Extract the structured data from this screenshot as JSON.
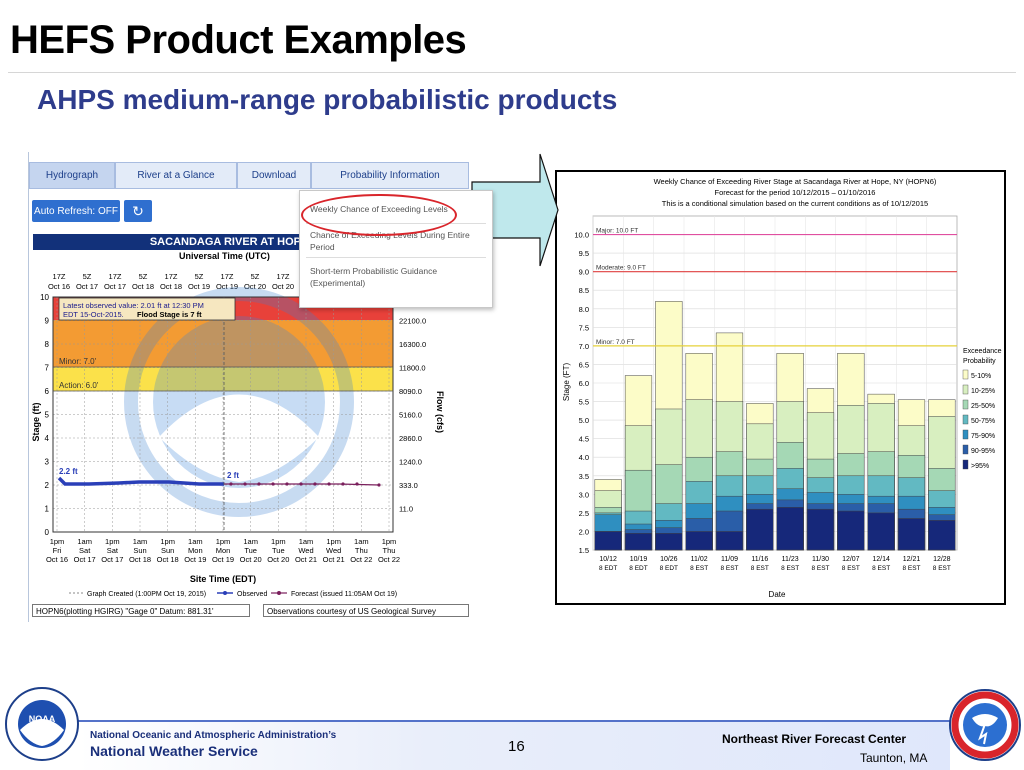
{
  "slide": {
    "title": "HEFS Product Examples",
    "subtitle": "AHPS medium-range probabilistic products",
    "page_number": "16"
  },
  "footer": {
    "agency_line1": "National Oceanic and Atmospheric Administration’s",
    "agency_line2": "National Weather Service",
    "center": "Northeast River Forecast Center",
    "location": "Taunton, MA"
  },
  "hydrograph_page": {
    "tabs": [
      "Hydrograph",
      "River at a Glance",
      "Download",
      "Probability Information"
    ],
    "auto_refresh_label": "Auto Refresh: OFF",
    "reload_icon": "refresh-icon",
    "menu_items": [
      "Weekly Chance of Exceeding Levels",
      "Chance of Exceeding Levels During Entire Period",
      "Short-term Probabilistic Guidance (Experimental)"
    ],
    "chart_title": "SACANDAGA RIVER AT HOP",
    "utc_label": "Universal Time (UTC)",
    "edt_label": "Site Time (EDT)",
    "latest_value": "Latest observed value: 2.01 ft at 12:30 PM",
    "latest_value2": "EDT 15-Oct-2015.",
    "flood_stage_text": "Flood Stage is 7 ft",
    "minor_label": "Minor: 7.0'",
    "action_label": "Action: 6.0'",
    "point_label_start": "2.2 ft",
    "point_label_end": "2 ft",
    "y_label": "Stage (ft)",
    "y2_label": "Flow (cfs)",
    "y_ticks": [
      "0",
      "1",
      "2",
      "3",
      "4",
      "5",
      "6",
      "7",
      "8",
      "9",
      "10"
    ],
    "flow_ticks": [
      "11.0",
      "333.0",
      "1240.0",
      "2860.0",
      "5160.0",
      "8090.0",
      "11800.0",
      "16300.0",
      "22100.0"
    ],
    "utc_ticks_top": [
      "17Z",
      "5Z",
      "17Z",
      "5Z",
      "17Z",
      "5Z",
      "17Z",
      "5Z",
      "17Z"
    ],
    "utc_ticks_bottom": [
      "Oct 16",
      "Oct 17",
      "Oct 17",
      "Oct 18",
      "Oct 18",
      "Oct 19",
      "Oct 19",
      "Oct 20",
      "Oct 20"
    ],
    "edt_ticks_time": [
      "1pm",
      "1am",
      "1pm",
      "1am",
      "1pm",
      "1am",
      "1pm",
      "1am",
      "1pm",
      "1am",
      "1pm",
      "1am",
      "1pm"
    ],
    "edt_ticks_day": [
      "Fri",
      "Sat",
      "Sat",
      "Sun",
      "Sun",
      "Mon",
      "Mon",
      "Tue",
      "Tue",
      "Wed",
      "Wed",
      "Thu",
      "Thu"
    ],
    "edt_ticks_date": [
      "Oct 16",
      "Oct 17",
      "Oct 17",
      "Oct 18",
      "Oct 18",
      "Oct 19",
      "Oct 19",
      "Oct 20",
      "Oct 20",
      "Oct 21",
      "Oct 21",
      "Oct 22",
      "Oct 22"
    ],
    "legend_created": "Graph Created (1:00PM Oct 19, 2015)",
    "legend_observed": "Observed",
    "legend_forecast": "Forecast (issued 11:05AM Oct 19)",
    "footer_left": "HOPN6(plotting HGIRG) \"Gage 0\" Datum: 881.31'",
    "footer_right": "Observations courtesy of US Geological Survey",
    "colors": {
      "major": "#e8413a",
      "moderate": "#f39b33",
      "minor": "#fbe14a",
      "observed": "#2a3fb8",
      "forecast": "#7a1f5c"
    }
  },
  "chart_data": {
    "type": "bar",
    "title": "Weekly Chance of Exceeding River Stage at Sacandaga River at Hope, NY (HOPN6)",
    "subtitle_1": "Forecast for the period 10/12/2015 – 01/10/2016",
    "subtitle_2": "This is a conditional simulation based on the current conditions as of 10/12/2015",
    "xlabel": "Date",
    "ylabel": "Stage (FT)",
    "ylim": [
      1.5,
      10.5
    ],
    "y_ticks": [
      1.5,
      2.0,
      2.5,
      3.0,
      3.5,
      4.0,
      4.5,
      5.0,
      5.5,
      6.0,
      6.5,
      7.0,
      7.5,
      8.0,
      8.5,
      9.0,
      9.5,
      10.0
    ],
    "categories": [
      "10/12",
      "10/19",
      "10/26",
      "11/02",
      "11/09",
      "11/16",
      "11/23",
      "11/30",
      "12/07",
      "12/14",
      "12/21",
      "12/28"
    ],
    "categories_sub": [
      "8 EDT",
      "8 EDT",
      "8 EDT",
      "8 EST",
      "8 EST",
      "8 EST",
      "8 EST",
      "8 EST",
      "8 EST",
      "8 EST",
      "8 EST",
      "8 EST"
    ],
    "thresholds": [
      {
        "label": "Major: 10.0 FT",
        "value": 10.0,
        "color": "#e04fa0"
      },
      {
        "label": "Moderate: 9.0 FT",
        "value": 9.0,
        "color": "#e04040"
      },
      {
        "label": "Minor: 7.0 FT",
        "value": 7.0,
        "color": "#e6d23a"
      }
    ],
    "legend_title": "Exceedance Probability",
    "series": [
      {
        "name": "5-10%",
        "color": "#fcfcc8",
        "values": [
          3.4,
          6.2,
          8.2,
          6.8,
          7.35,
          5.45,
          6.8,
          5.85,
          6.8,
          5.7,
          5.55,
          5.55
        ]
      },
      {
        "name": "10-25%",
        "color": "#d8efc0",
        "values": [
          3.1,
          4.85,
          5.3,
          5.55,
          5.5,
          4.9,
          5.5,
          5.2,
          5.4,
          5.45,
          4.85,
          5.1
        ]
      },
      {
        "name": "25-50%",
        "color": "#a5d8b5",
        "values": [
          2.65,
          3.65,
          3.8,
          4.0,
          4.15,
          3.95,
          4.4,
          3.95,
          4.1,
          4.15,
          4.05,
          3.7
        ]
      },
      {
        "name": "50-75%",
        "color": "#62b9c2",
        "values": [
          2.5,
          2.55,
          2.75,
          3.35,
          3.5,
          3.5,
          3.7,
          3.45,
          3.5,
          3.5,
          3.45,
          3.1
        ]
      },
      {
        "name": "75-90%",
        "color": "#2f8fc0",
        "values": [
          2.45,
          2.2,
          2.3,
          2.75,
          2.95,
          3.0,
          3.15,
          3.05,
          3.0,
          2.95,
          2.95,
          2.65
        ]
      },
      {
        "name": "90-95%",
        "color": "#2a5ea8",
        "values": [
          2.0,
          2.05,
          2.1,
          2.35,
          2.55,
          2.75,
          2.85,
          2.75,
          2.75,
          2.75,
          2.6,
          2.45
        ]
      },
      {
        "name": ">95%",
        "color": "#16287a",
        "values": [
          2.0,
          1.95,
          1.95,
          2.0,
          2.0,
          2.6,
          2.65,
          2.6,
          2.55,
          2.5,
          2.35,
          2.3
        ]
      }
    ]
  }
}
